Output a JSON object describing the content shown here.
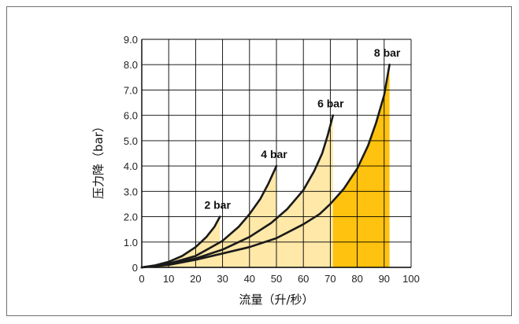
{
  "chart_data": {
    "type": "area",
    "xlabel": "流量（升/秒）",
    "ylabel": "压力降（bar）",
    "xlim": [
      0,
      100
    ],
    "ylim": [
      0,
      9
    ],
    "x_ticks": [
      "0",
      "10",
      "20",
      "30",
      "40",
      "50",
      "60",
      "70",
      "80",
      "90",
      "100"
    ],
    "y_ticks": [
      "0",
      "1.0",
      "2.0",
      "3.0",
      "4.0",
      "5.0",
      "6.0",
      "7.0",
      "8.0",
      "9.0"
    ],
    "grid": true,
    "colors": {
      "fill_highlight": "#ffc20e",
      "fill_light": "#ffe8a8",
      "line": "#1a1a1a",
      "grid": "#000000"
    },
    "series": [
      {
        "name": "2 bar",
        "highlight": false,
        "x": [
          0,
          5,
          10,
          15,
          20,
          24,
          27,
          29
        ],
        "y": [
          0,
          0.08,
          0.22,
          0.45,
          0.8,
          1.2,
          1.6,
          2.0
        ]
      },
      {
        "name": "4 bar",
        "highlight": false,
        "x": [
          0,
          10,
          20,
          30,
          36,
          40,
          44,
          47,
          50
        ],
        "y": [
          0,
          0.15,
          0.45,
          1.05,
          1.6,
          2.1,
          2.7,
          3.3,
          4.0
        ]
      },
      {
        "name": "6 bar",
        "highlight": false,
        "x": [
          0,
          10,
          20,
          30,
          40,
          48,
          54,
          60,
          64,
          67,
          69,
          71
        ],
        "y": [
          0,
          0.12,
          0.35,
          0.7,
          1.2,
          1.75,
          2.3,
          3.05,
          3.8,
          4.5,
          5.2,
          6.0
        ]
      },
      {
        "name": "8 bar",
        "highlight": true,
        "x": [
          0,
          10,
          20,
          30,
          40,
          50,
          60,
          66,
          70,
          75,
          80,
          84,
          87,
          90,
          92
        ],
        "y": [
          0,
          0.1,
          0.3,
          0.55,
          0.8,
          1.15,
          1.7,
          2.1,
          2.5,
          3.1,
          3.9,
          4.8,
          5.7,
          6.8,
          8.0
        ]
      }
    ]
  }
}
